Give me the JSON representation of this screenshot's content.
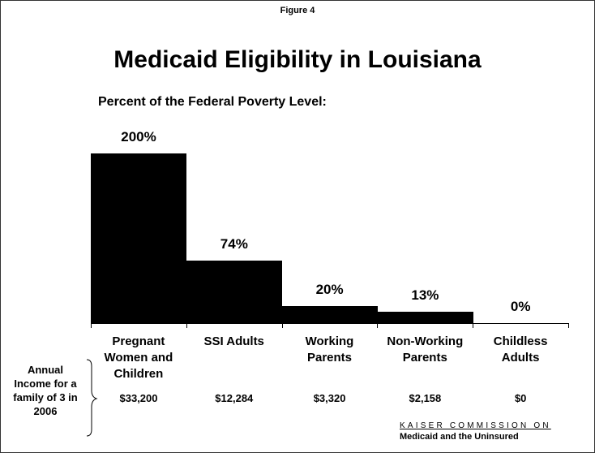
{
  "chart_data": {
    "type": "bar",
    "figure_label": "Figure 4",
    "title": "Medicaid Eligibility in Louisiana",
    "subtitle": "Percent of the Federal Poverty Level:",
    "categories": [
      "Pregnant Women and Children",
      "SSI Adults",
      "Working Parents",
      "Non-Working Parents",
      "Childless Adults"
    ],
    "values": [
      200,
      74,
      20,
      13,
      0
    ],
    "value_labels": [
      "200%",
      "74%",
      "20%",
      "13%",
      "0%"
    ],
    "color": "#000000",
    "ylim": [
      0,
      200
    ],
    "income_label": "Annual Income for a family of 3 in 2006",
    "income_values": [
      "$33,200",
      "$12,284",
      "$3,320",
      "$2,158",
      "$0"
    ],
    "source_line1": "KAISER COMMISSION ON",
    "source_line2": "Medicaid and the Uninsured"
  }
}
